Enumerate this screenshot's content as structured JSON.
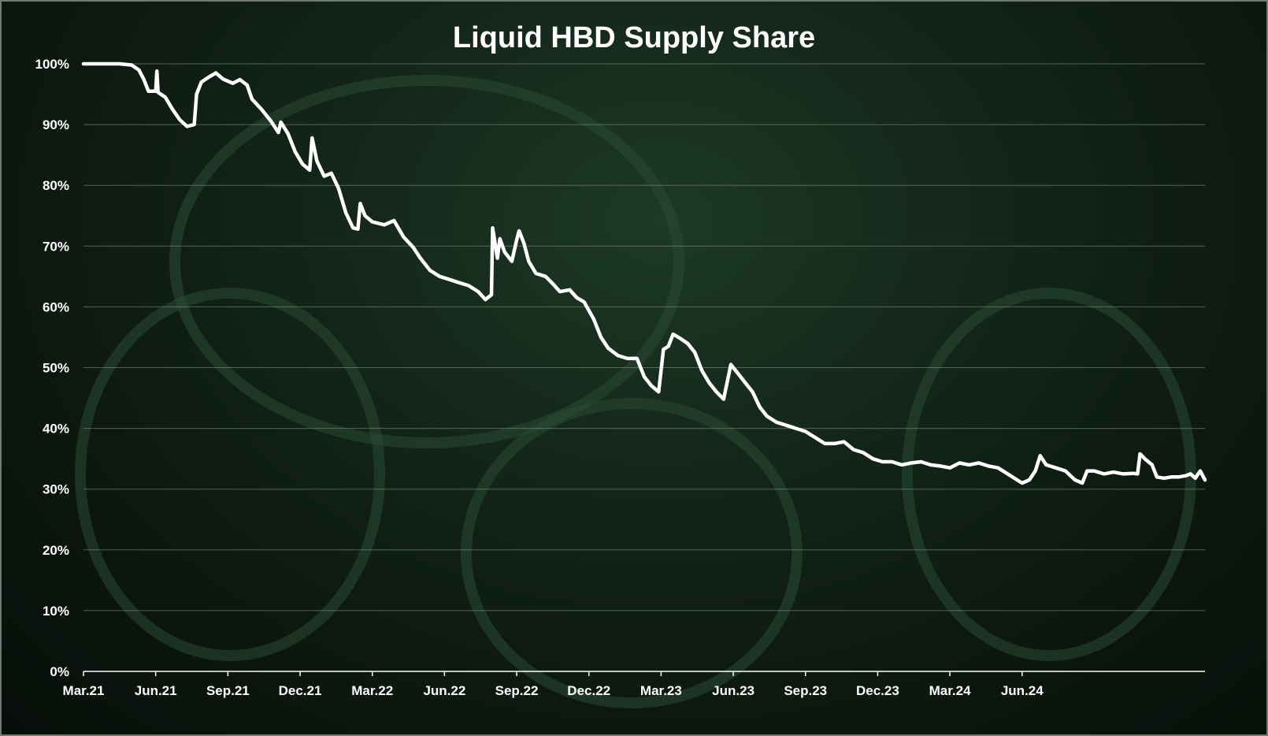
{
  "chart_data": {
    "type": "line",
    "title": "Liquid HBD Supply Share",
    "xlabel": "",
    "ylabel": "",
    "ylim": [
      0,
      100
    ],
    "y_ticks": [
      "0%",
      "10%",
      "20%",
      "30%",
      "40%",
      "50%",
      "60%",
      "70%",
      "80%",
      "90%",
      "100%"
    ],
    "x_ticks": [
      "Mar.21",
      "Jun.21",
      "Sep.21",
      "Dec.21",
      "Mar.22",
      "Jun.22",
      "Sep.22",
      "Dec.22",
      "Mar.23",
      "Jun.23",
      "Sep.23",
      "Dec.23",
      "Mar.24",
      "Jun.24"
    ],
    "grid": true,
    "legend": "none",
    "colors": {
      "line": "#ffffff",
      "background": "#0e1b12",
      "grid": "#8a9a8d"
    },
    "series": [
      {
        "points": [
          [
            0.0,
            100
          ],
          [
            0.5,
            100
          ],
          [
            1.0,
            100
          ],
          [
            1.5,
            100
          ],
          [
            2.0,
            99.8
          ],
          [
            2.3,
            99.0
          ],
          [
            2.5,
            97.5
          ],
          [
            2.7,
            95.5
          ],
          [
            3.0,
            95.5
          ],
          [
            3.05,
            98.8
          ],
          [
            3.1,
            95.3
          ],
          [
            3.4,
            94.5
          ],
          [
            3.7,
            92.5
          ],
          [
            4.0,
            90.8
          ],
          [
            4.3,
            89.7
          ],
          [
            4.6,
            90.0
          ],
          [
            4.7,
            95.0
          ],
          [
            4.9,
            97.0
          ],
          [
            5.2,
            97.8
          ],
          [
            5.5,
            98.5
          ],
          [
            5.8,
            97.5
          ],
          [
            6.2,
            96.8
          ],
          [
            6.5,
            97.4
          ],
          [
            6.8,
            96.5
          ],
          [
            7.0,
            94.2
          ],
          [
            7.4,
            92.5
          ],
          [
            7.8,
            90.5
          ],
          [
            8.1,
            88.7
          ],
          [
            8.2,
            90.4
          ],
          [
            8.5,
            88.5
          ],
          [
            8.8,
            85.5
          ],
          [
            9.1,
            83.5
          ],
          [
            9.4,
            82.5
          ],
          [
            9.5,
            87.8
          ],
          [
            9.7,
            84.0
          ],
          [
            10.0,
            81.5
          ],
          [
            10.3,
            82.0
          ],
          [
            10.6,
            79.5
          ],
          [
            10.9,
            75.5
          ],
          [
            11.2,
            73.0
          ],
          [
            11.4,
            72.8
          ],
          [
            11.5,
            77.0
          ],
          [
            11.7,
            75.0
          ],
          [
            12.0,
            74.0
          ],
          [
            12.5,
            73.5
          ],
          [
            12.9,
            74.2
          ],
          [
            13.3,
            71.5
          ],
          [
            13.7,
            69.8
          ],
          [
            14.0,
            68.0
          ],
          [
            14.4,
            66.0
          ],
          [
            14.8,
            65.0
          ],
          [
            15.2,
            64.5
          ],
          [
            15.6,
            64.0
          ],
          [
            16.0,
            63.5
          ],
          [
            16.4,
            62.5
          ],
          [
            16.7,
            61.2
          ],
          [
            16.95,
            62.0
          ],
          [
            17.0,
            73.0
          ],
          [
            17.2,
            68.0
          ],
          [
            17.3,
            71.2
          ],
          [
            17.5,
            69.0
          ],
          [
            17.8,
            67.5
          ],
          [
            18.0,
            71.0
          ],
          [
            18.1,
            72.5
          ],
          [
            18.3,
            70.5
          ],
          [
            18.5,
            67.5
          ],
          [
            18.8,
            65.5
          ],
          [
            19.2,
            65.0
          ],
          [
            19.5,
            63.8
          ],
          [
            19.8,
            62.5
          ],
          [
            20.2,
            62.8
          ],
          [
            20.5,
            61.5
          ],
          [
            20.8,
            60.8
          ],
          [
            21.2,
            58.0
          ],
          [
            21.5,
            55.0
          ],
          [
            21.8,
            53.2
          ],
          [
            22.2,
            52.0
          ],
          [
            22.6,
            51.5
          ],
          [
            23.0,
            51.5
          ],
          [
            23.3,
            48.5
          ],
          [
            23.6,
            47.0
          ],
          [
            23.9,
            46.0
          ],
          [
            24.1,
            53.0
          ],
          [
            24.3,
            53.5
          ],
          [
            24.5,
            55.5
          ],
          [
            24.8,
            54.8
          ],
          [
            25.1,
            54.0
          ],
          [
            25.4,
            52.5
          ],
          [
            25.7,
            49.5
          ],
          [
            26.0,
            47.5
          ],
          [
            26.3,
            46.0
          ],
          [
            26.6,
            44.8
          ],
          [
            26.9,
            50.5
          ],
          [
            27.2,
            49.0
          ],
          [
            27.5,
            47.5
          ],
          [
            27.8,
            46.0
          ],
          [
            28.1,
            43.5
          ],
          [
            28.4,
            42.0
          ],
          [
            28.8,
            41.0
          ],
          [
            29.2,
            40.5
          ],
          [
            29.6,
            40.0
          ],
          [
            30.0,
            39.5
          ],
          [
            30.4,
            38.5
          ],
          [
            30.8,
            37.5
          ],
          [
            31.2,
            37.5
          ],
          [
            31.6,
            37.8
          ],
          [
            32.0,
            36.5
          ],
          [
            32.4,
            36.0
          ],
          [
            32.8,
            35.0
          ],
          [
            33.2,
            34.5
          ],
          [
            33.6,
            34.5
          ],
          [
            34.0,
            34.0
          ],
          [
            34.4,
            34.3
          ],
          [
            34.8,
            34.5
          ],
          [
            35.2,
            34.0
          ],
          [
            35.6,
            33.8
          ],
          [
            36.0,
            33.5
          ],
          [
            36.4,
            34.3
          ],
          [
            36.8,
            34.0
          ],
          [
            37.2,
            34.3
          ],
          [
            37.6,
            33.8
          ],
          [
            38.0,
            33.5
          ],
          [
            38.4,
            32.5
          ],
          [
            38.8,
            31.5
          ],
          [
            39.0,
            31.0
          ],
          [
            39.3,
            31.5
          ],
          [
            39.55,
            33.0
          ],
          [
            39.75,
            35.5
          ],
          [
            40.0,
            34.0
          ],
          [
            40.4,
            33.5
          ],
          [
            40.8,
            33.0
          ],
          [
            41.2,
            31.5
          ],
          [
            41.5,
            31.0
          ],
          [
            41.7,
            33.0
          ],
          [
            42.0,
            33.0
          ],
          [
            42.4,
            32.5
          ],
          [
            42.8,
            32.8
          ],
          [
            43.2,
            32.5
          ],
          [
            43.6,
            32.6
          ],
          [
            43.8,
            32.5
          ],
          [
            43.9,
            35.8
          ],
          [
            44.1,
            35.0
          ],
          [
            44.4,
            34.0
          ],
          [
            44.6,
            32.0
          ],
          [
            44.9,
            31.8
          ],
          [
            45.2,
            32.0
          ],
          [
            45.5,
            32.0
          ],
          [
            45.8,
            32.2
          ],
          [
            46.0,
            32.5
          ],
          [
            46.2,
            31.8
          ],
          [
            46.4,
            33.0
          ],
          [
            46.6,
            31.5
          ]
        ]
      }
    ]
  }
}
